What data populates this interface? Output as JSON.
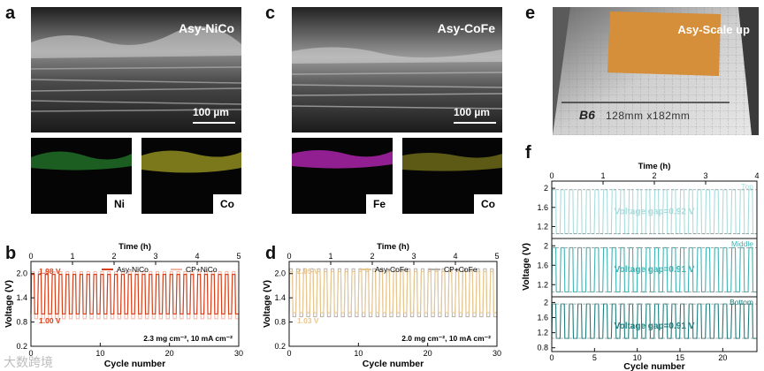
{
  "panels": {
    "a": {
      "letter": "a",
      "sample": "Asy-NiCo",
      "scale": "100 µm",
      "maps": [
        "Ni",
        "Co"
      ]
    },
    "c": {
      "letter": "c",
      "sample": "Asy-CoFe",
      "scale": "100 µm",
      "maps": [
        "Fe",
        "Co"
      ]
    },
    "e": {
      "letter": "e",
      "sample": "Asy-Scale up",
      "paper": "B6",
      "size": "128mm x182mm"
    }
  },
  "colors": {
    "nicoRed": "#d9401a",
    "nicoLight": "#f2b6a7",
    "cofeTan": "#e8c78f",
    "cofeGrey": "#b8b0a6",
    "teal1": "#a8dcdc",
    "teal2": "#3fb3b3",
    "teal3": "#1f7d7d",
    "ni": "#2fa83a",
    "co": "#c9c32a",
    "fe": "#c028c0"
  },
  "chart_data": [
    {
      "id": "b",
      "letter": "b",
      "type": "line",
      "title": "Time (h)",
      "xlabel": "Cycle number",
      "ylabel": "Voltage (V)",
      "xlim": [
        0,
        30
      ],
      "ylim": [
        0.2,
        2.3
      ],
      "top_xlim": [
        0,
        5
      ],
      "xticks": [
        0,
        10,
        20,
        30
      ],
      "top_ticks": [
        0,
        1,
        2,
        3,
        4,
        5
      ],
      "yticks": [
        0.2,
        0.8,
        1.4,
        2.0
      ],
      "series": [
        {
          "name": "Asy-NiCo",
          "upper": 1.98,
          "lower": 1.0,
          "cycles": 30
        },
        {
          "name": "CP+NiCo",
          "upper": 2.05,
          "lower": 0.88,
          "cycles": 30
        }
      ],
      "upper_label": "1.98 V",
      "lower_label": "1.00 V",
      "condition": "2.3 mg cm⁻², 10 mA cm⁻²"
    },
    {
      "id": "d",
      "letter": "d",
      "type": "line",
      "title": "Time (h)",
      "xlabel": "Cycle number",
      "ylabel": "Voltage (V)",
      "xlim": [
        0,
        30
      ],
      "ylim": [
        0.2,
        2.3
      ],
      "top_xlim": [
        0,
        5
      ],
      "xticks": [
        0,
        10,
        20,
        30
      ],
      "top_ticks": [
        0,
        1,
        2,
        3,
        4,
        5
      ],
      "yticks": [
        0.2,
        0.8,
        1.4,
        2.0
      ],
      "series": [
        {
          "name": "Asy-CoFe",
          "upper": 2.05,
          "lower": 1.03,
          "cycles": 30
        },
        {
          "name": "CP+CoFe",
          "upper": 2.12,
          "lower": 0.93,
          "cycles": 30
        }
      ],
      "upper_label": "2.05 V",
      "lower_label": "1.03 V",
      "condition": "2.0 mg cm⁻², 10 mA cm⁻²"
    },
    {
      "id": "f",
      "letter": "f",
      "type": "line",
      "title": "Time (h)",
      "xlabel": "Cycle number",
      "ylabel": "Voltage (V)",
      "xlim": [
        0,
        24
      ],
      "top_xlim": [
        0,
        4
      ],
      "xticks": [
        0,
        5,
        10,
        15,
        20
      ],
      "top_ticks": [
        0,
        1,
        2,
        3,
        4
      ],
      "yticks": [
        1.2,
        1.6,
        2.0
      ],
      "bottom_yticks": [
        0.8,
        1.2,
        1.6,
        2.0
      ],
      "subplots": [
        {
          "name": "Top",
          "gap": "Voltage gap=0.92 V",
          "upper": 1.97,
          "lower": 1.05,
          "ylim": [
            0.95,
            2.15
          ]
        },
        {
          "name": "Middle",
          "gap": "Voltage gap=0.91 V",
          "upper": 1.96,
          "lower": 1.05,
          "ylim": [
            0.95,
            2.15
          ]
        },
        {
          "name": "Bottom",
          "gap": "Voltage gap=0.91 V",
          "upper": 1.96,
          "lower": 1.05,
          "ylim": [
            0.7,
            2.15
          ]
        }
      ]
    }
  ],
  "watermark": "大数跨境"
}
